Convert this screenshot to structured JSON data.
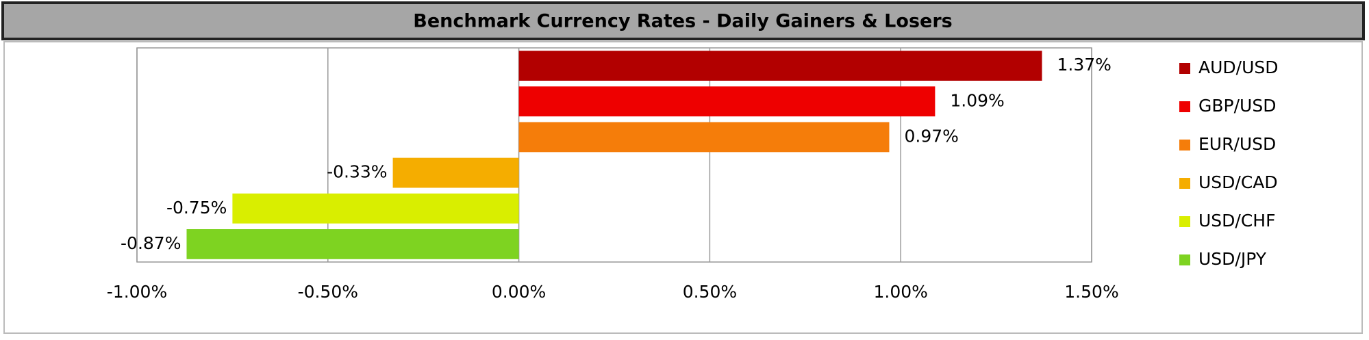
{
  "chart_data": {
    "type": "bar",
    "orientation": "horizontal",
    "title": "Benchmark Currency Rates - Daily Gainers & Losers",
    "categories": [
      "AUD/USD",
      "GBP/USD",
      "EUR/USD",
      "USD/CAD",
      "USD/CHF",
      "USD/JPY"
    ],
    "values": [
      1.37,
      1.09,
      0.97,
      -0.33,
      -0.75,
      -0.87
    ],
    "value_labels": [
      "1.37%",
      "1.09%",
      "0.97%",
      "-0.33%",
      "-0.75%",
      "-0.87%"
    ],
    "colors": [
      "#b20000",
      "#ee0000",
      "#f57d0a",
      "#f5ad00",
      "#d9ee00",
      "#7ed321"
    ],
    "xlim": [
      -1,
      1.5
    ],
    "xticks": [
      {
        "value": -1,
        "label": "-1.00%"
      },
      {
        "value": -0.5,
        "label": "-0.50%"
      },
      {
        "value": 0,
        "label": "0.00%"
      },
      {
        "value": 0.5,
        "label": "0.50%"
      },
      {
        "value": 1,
        "label": "1.00%"
      },
      {
        "value": 1.5,
        "label": "1.50%"
      }
    ],
    "grid": true,
    "legend": "right"
  }
}
